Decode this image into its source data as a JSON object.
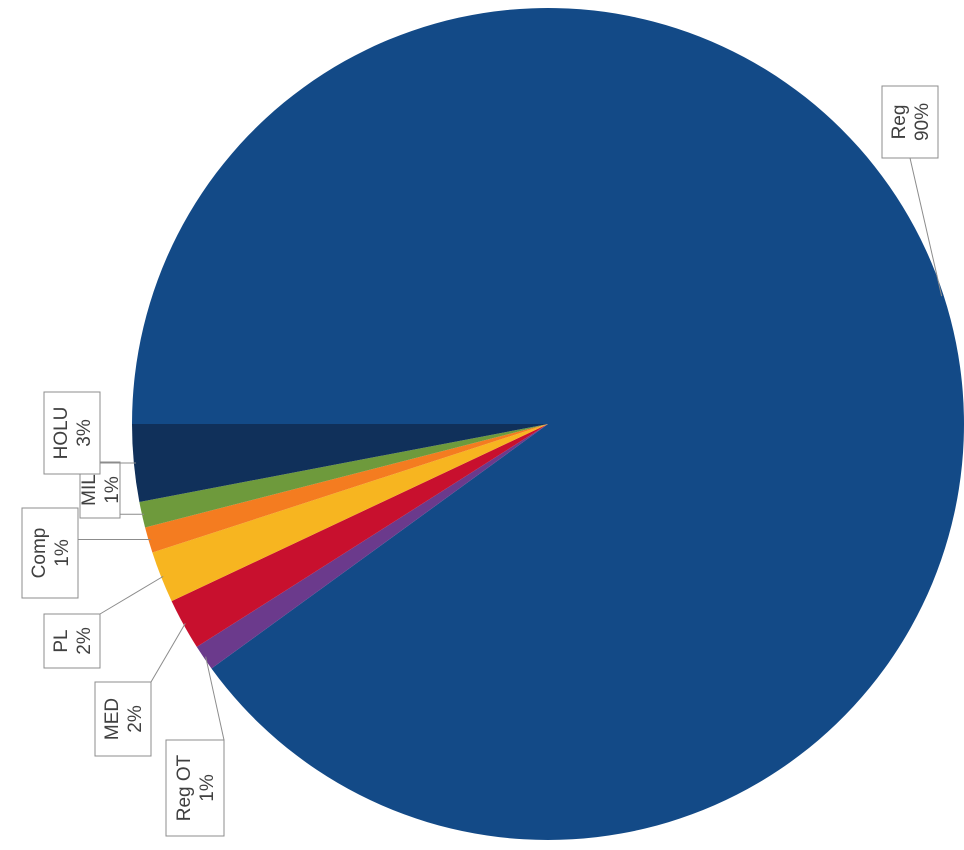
{
  "chart_data": {
    "type": "pie",
    "title": "",
    "slices": [
      {
        "label": "Reg",
        "value": 90,
        "display": "90%",
        "color": "#134A87"
      },
      {
        "label": "Reg OT",
        "value": 1,
        "display": "1%",
        "color": "#6B3A8C"
      },
      {
        "label": "MED",
        "value": 2,
        "display": "2%",
        "color": "#C8102E"
      },
      {
        "label": "PL",
        "value": 2,
        "display": "2%",
        "color": "#F7B520"
      },
      {
        "label": "Comp",
        "value": 1,
        "display": "1%",
        "color": "#F47C20"
      },
      {
        "label": "MIL",
        "value": 1,
        "display": "1%",
        "color": "#6E9A3C"
      },
      {
        "label": "HOLU",
        "value": 3,
        "display": "3%",
        "color": "#10305A"
      }
    ],
    "legend": "none",
    "data_labels": "outside with leader lines, rotated"
  }
}
